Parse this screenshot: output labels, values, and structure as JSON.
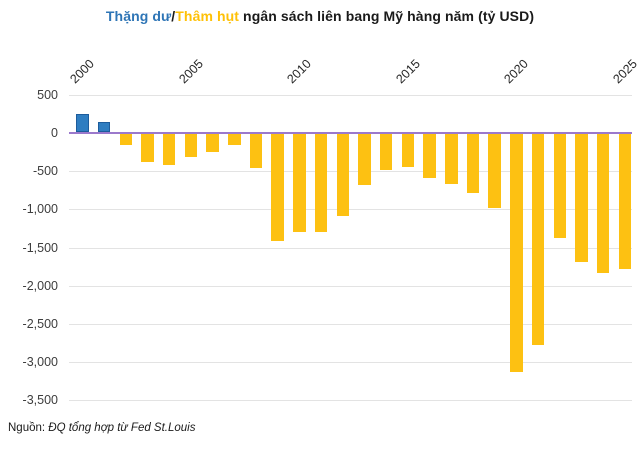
{
  "title": {
    "surplus": "Thặng dư",
    "slash": "/",
    "deficit": "Thâm hụt",
    "rest": " ngân sách liên bang Mỹ hàng năm (tỷ USD)"
  },
  "source": {
    "prefix": "Nguồn: ",
    "text": "ĐQ tổng hợp từ Fed St.Louis"
  },
  "colors": {
    "surplus": "#2e7dc1",
    "deficit": "#fdc112",
    "zero_line": "#9b79cc",
    "gridline": "#e3e3e3",
    "title_surplus": "#2e75b6",
    "title_deficit": "#ffc107"
  },
  "chart_data": {
    "type": "bar",
    "title": "Thặng dư/Thâm hụt ngân sách liên bang Mỹ hàng năm (tỷ USD)",
    "unit": "tỷ USD",
    "x": [
      2000,
      2001,
      2002,
      2003,
      2004,
      2005,
      2006,
      2007,
      2008,
      2009,
      2010,
      2011,
      2012,
      2013,
      2014,
      2015,
      2016,
      2017,
      2018,
      2019,
      2020,
      2021,
      2022,
      2023,
      2024,
      2025
    ],
    "values": [
      236,
      128,
      -158,
      -378,
      -413,
      -318,
      -248,
      -161,
      -459,
      -1413,
      -1294,
      -1300,
      -1087,
      -679,
      -485,
      -442,
      -585,
      -665,
      -779,
      -984,
      -3132,
      -2772,
      -1375,
      -1695,
      -1833,
      -1775
    ],
    "x_tick_labels": [
      "2000",
      "2005",
      "2010",
      "2015",
      "2020",
      "2025"
    ],
    "x_tick_years": [
      2000,
      2005,
      2010,
      2015,
      2020,
      2025
    ],
    "y_ticks": [
      500,
      0,
      -500,
      -1000,
      -1500,
      -2000,
      -2500,
      -3000,
      -3500
    ],
    "y_tick_labels": [
      "500",
      "0",
      "-500",
      "-1,000",
      "-1,500",
      "-2,000",
      "-2,500",
      "-3,000",
      "-3,500"
    ],
    "ylim": [
      -3500,
      500
    ],
    "grid": true,
    "x_axis_position": "top",
    "legend": null,
    "source": "Nguồn: ĐQ tổng hợp từ Fed St.Louis"
  }
}
